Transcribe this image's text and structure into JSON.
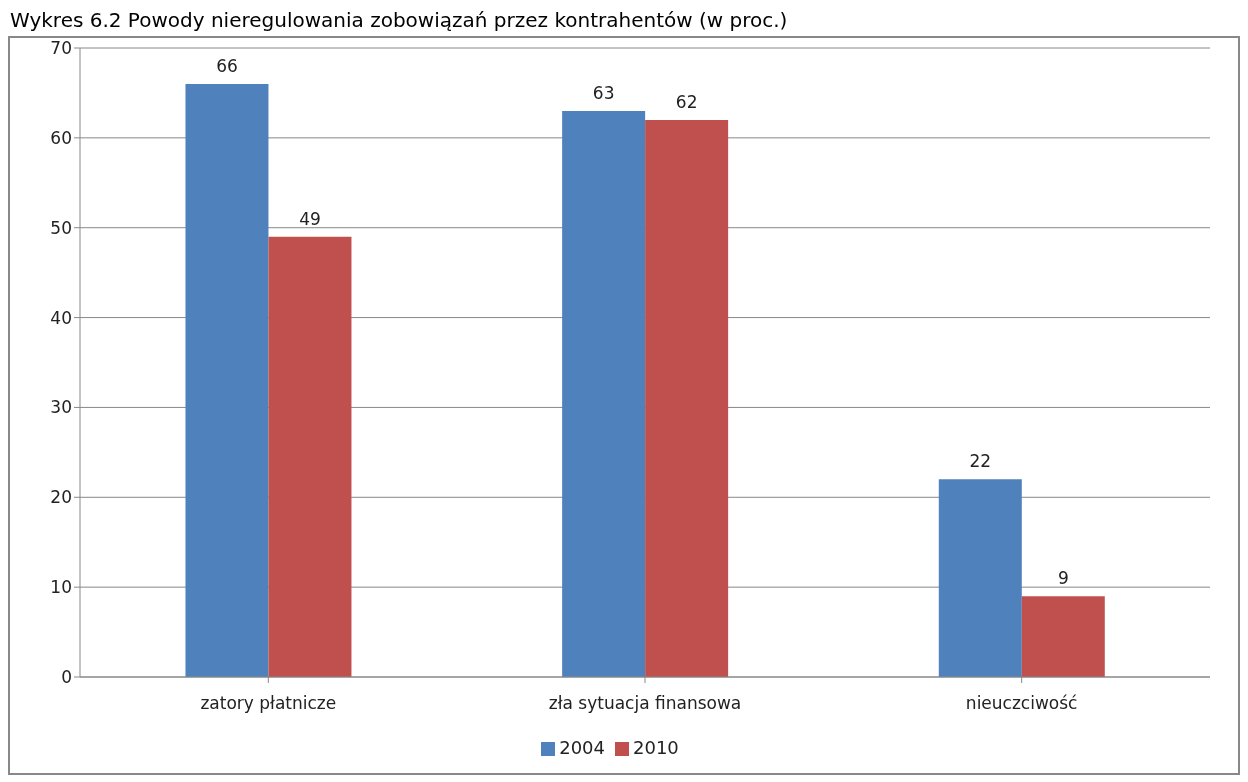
{
  "chart_data": {
    "type": "bar",
    "title": "Wykres 6.2 Powody nieregulowania zobowiązań przez kontrahentów (w proc.)",
    "categories": [
      "zatory płatnicze",
      "zła sytuacja finansowa",
      "nieuczciwość"
    ],
    "series": [
      {
        "name": "2004",
        "color": "#4f81bd",
        "values": [
          66,
          63,
          22
        ]
      },
      {
        "name": "2010",
        "color": "#c0504d",
        "values": [
          49,
          62,
          9
        ]
      }
    ],
    "ylim": [
      0,
      70
    ],
    "yticks": [
      0,
      10,
      20,
      30,
      40,
      50,
      60,
      70
    ],
    "grid": "y",
    "legend": "bottom",
    "data_labels": true
  }
}
